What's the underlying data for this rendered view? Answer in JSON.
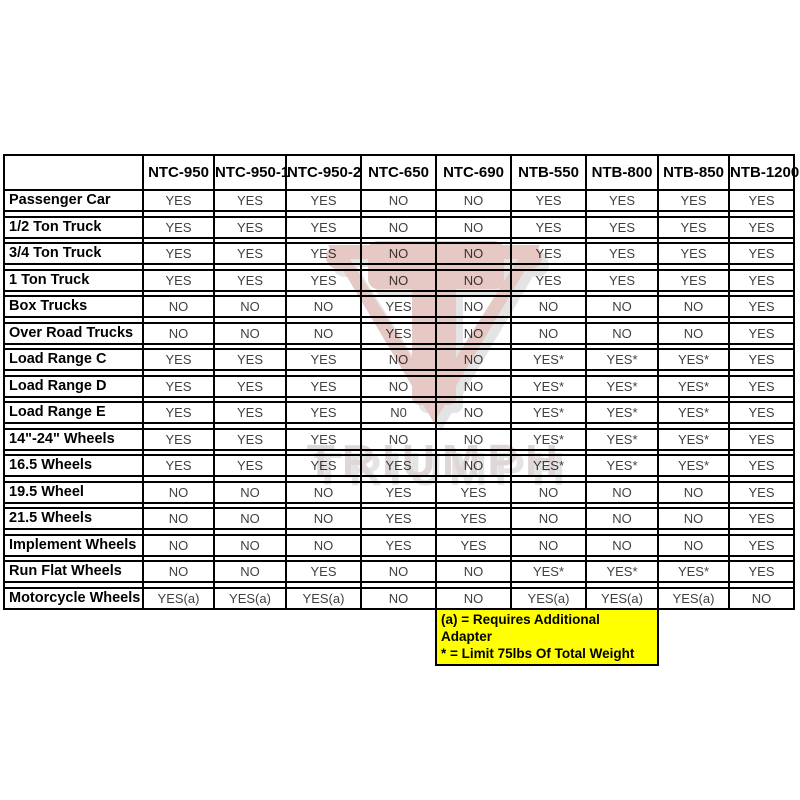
{
  "chart_data": {
    "type": "table",
    "title": "",
    "columns": [
      "NTC-950",
      "NTC-950-1",
      "NTC-950-2",
      "NTC-650",
      "NTC-690",
      "NTB-550",
      "NTB-800",
      "NTB-850",
      "NTB-1200"
    ],
    "rows": [
      {
        "label": "Passenger Car",
        "values": [
          "YES",
          "YES",
          "YES",
          "NO",
          "NO",
          "YES",
          "YES",
          "YES",
          "YES"
        ]
      },
      {
        "label": "1/2 Ton Truck",
        "values": [
          "YES",
          "YES",
          "YES",
          "NO",
          "NO",
          "YES",
          "YES",
          "YES",
          "YES"
        ]
      },
      {
        "label": "3/4 Ton Truck",
        "values": [
          "YES",
          "YES",
          "YES",
          "NO",
          "NO",
          "YES",
          "YES",
          "YES",
          "YES"
        ]
      },
      {
        "label": "1 Ton Truck",
        "values": [
          "YES",
          "YES",
          "YES",
          "NO",
          "NO",
          "YES",
          "YES",
          "YES",
          "YES"
        ]
      },
      {
        "label": "Box Trucks",
        "values": [
          "NO",
          "NO",
          "NO",
          "YES",
          "NO",
          "NO",
          "NO",
          "NO",
          "YES"
        ]
      },
      {
        "label": "Over Road Trucks",
        "values": [
          "NO",
          "NO",
          "NO",
          "YES",
          "NO",
          "NO",
          "NO",
          "NO",
          "YES"
        ]
      },
      {
        "label": "Load Range C",
        "values": [
          "YES",
          "YES",
          "YES",
          "NO",
          "NO",
          "YES*",
          "YES*",
          "YES*",
          "YES"
        ]
      },
      {
        "label": "Load Range D",
        "values": [
          "YES",
          "YES",
          "YES",
          "NO",
          "NO",
          "YES*",
          "YES*",
          "YES*",
          "YES"
        ]
      },
      {
        "label": "Load Range E",
        "values": [
          "YES",
          "YES",
          "YES",
          "N0",
          "NO",
          "YES*",
          "YES*",
          "YES*",
          "YES"
        ]
      },
      {
        "label": "14\"-24\" Wheels",
        "values": [
          "YES",
          "YES",
          "YES",
          "NO",
          "NO",
          "YES*",
          "YES*",
          "YES*",
          "YES"
        ]
      },
      {
        "label": "16.5 Wheels",
        "values": [
          "YES",
          "YES",
          "YES",
          "YES",
          "NO",
          "YES*",
          "YES*",
          "YES*",
          "YES"
        ]
      },
      {
        "label": "19.5 Wheel",
        "values": [
          "NO",
          "NO",
          "NO",
          "YES",
          "YES",
          "NO",
          "NO",
          "NO",
          "YES"
        ]
      },
      {
        "label": "21.5 Wheels",
        "values": [
          "NO",
          "NO",
          "NO",
          "YES",
          "YES",
          "NO",
          "NO",
          "NO",
          "YES"
        ]
      },
      {
        "label": "Implement Wheels",
        "values": [
          "NO",
          "NO",
          "NO",
          "YES",
          "YES",
          "NO",
          "NO",
          "NO",
          "YES"
        ]
      },
      {
        "label": "Run Flat Wheels",
        "values": [
          "NO",
          "NO",
          "YES",
          "NO",
          "NO",
          "YES*",
          "YES*",
          "YES*",
          "YES"
        ]
      },
      {
        "label": "Motorcycle Wheels",
        "values": [
          "YES(a)",
          "YES(a)",
          "YES(a)",
          "NO",
          "NO",
          "YES(a)",
          "YES(a)",
          "YES(a)",
          "NO"
        ]
      }
    ],
    "legend": [
      "(a) = Requires Additional Adapter",
      "* = Limit 75lbs Of Total Weight"
    ],
    "layout_hints": {
      "grid": "on",
      "legend_position": "bottom-right"
    }
  },
  "colors": {
    "yes_green": "#92D050",
    "no_pink": "#D99795",
    "conditional_yellow": "#FFFF00",
    "border_black": "#000000",
    "cell_text": "#3F3F3F"
  },
  "watermark": {
    "text": "TRIUMPH",
    "logo_color": "#B0524A",
    "text_color": "#9C817E",
    "shadow_color": "#8F8F8F"
  }
}
